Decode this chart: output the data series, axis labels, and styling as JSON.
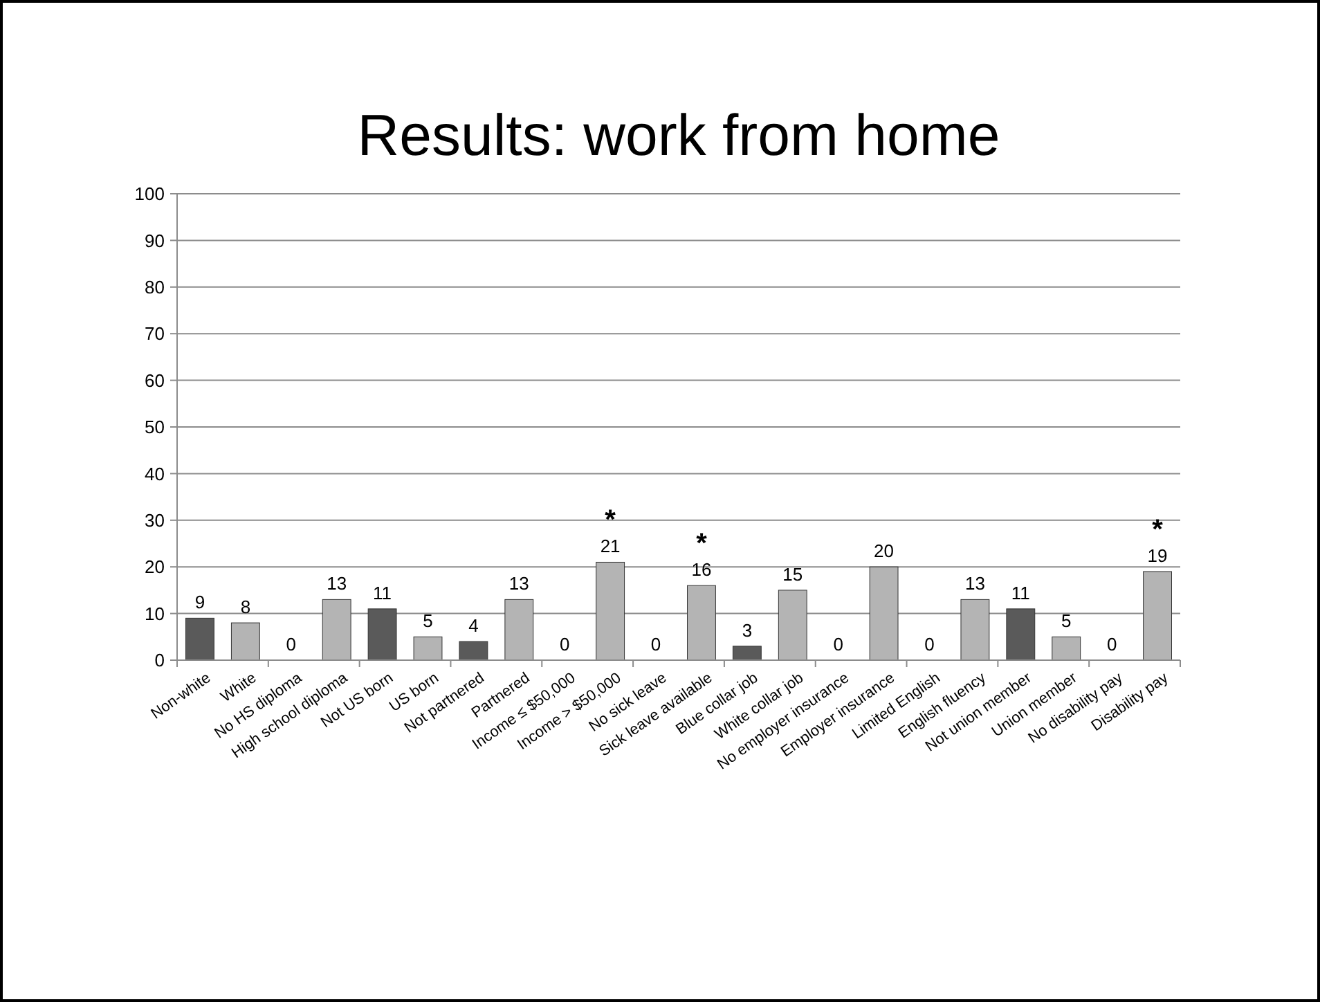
{
  "chart_data": {
    "type": "bar",
    "title": "Results: work from home",
    "categories": [
      "Non-white",
      "White",
      "No HS diploma",
      "High school diploma",
      "Not US born",
      "US born",
      "Not partnered",
      "Partnered",
      "Income ≤ $50,000",
      "Income > $50,000",
      "No sick leave",
      "Sick leave available",
      "Blue collar job",
      "White collar job",
      "No employer insurance",
      "Employer insurance",
      "Limited English",
      "English fluency",
      "Not union member",
      "Union member",
      "No disability pay",
      "Disability pay"
    ],
    "values": [
      9,
      8,
      0,
      13,
      11,
      5,
      4,
      13,
      0,
      21,
      0,
      16,
      3,
      15,
      0,
      20,
      0,
      13,
      11,
      5,
      0,
      19
    ],
    "colors": [
      "#5a5a5a",
      "#b4b4b4",
      "#5a5a5a",
      "#b4b4b4",
      "#5a5a5a",
      "#b4b4b4",
      "#5a5a5a",
      "#b4b4b4",
      "#5a5a5a",
      "#b4b4b4",
      "#5a5a5a",
      "#b4b4b4",
      "#5a5a5a",
      "#b4b4b4",
      "#5a5a5a",
      "#b4b4b4",
      "#5a5a5a",
      "#b4b4b4",
      "#5a5a5a",
      "#b4b4b4",
      "#5a5a5a",
      "#b4b4b4"
    ],
    "ylim": [
      0,
      100
    ],
    "yticks": [
      0,
      10,
      20,
      30,
      40,
      50,
      60,
      70,
      80,
      90,
      100
    ],
    "grid": "y",
    "data_labels": true,
    "annotations": [
      {
        "text": "*",
        "x": "Income > $50,000",
        "y": 21
      },
      {
        "text": "*",
        "x": "Sick leave available",
        "y": 16
      },
      {
        "text": "*",
        "x": "Disability pay",
        "y": 19
      }
    ]
  }
}
